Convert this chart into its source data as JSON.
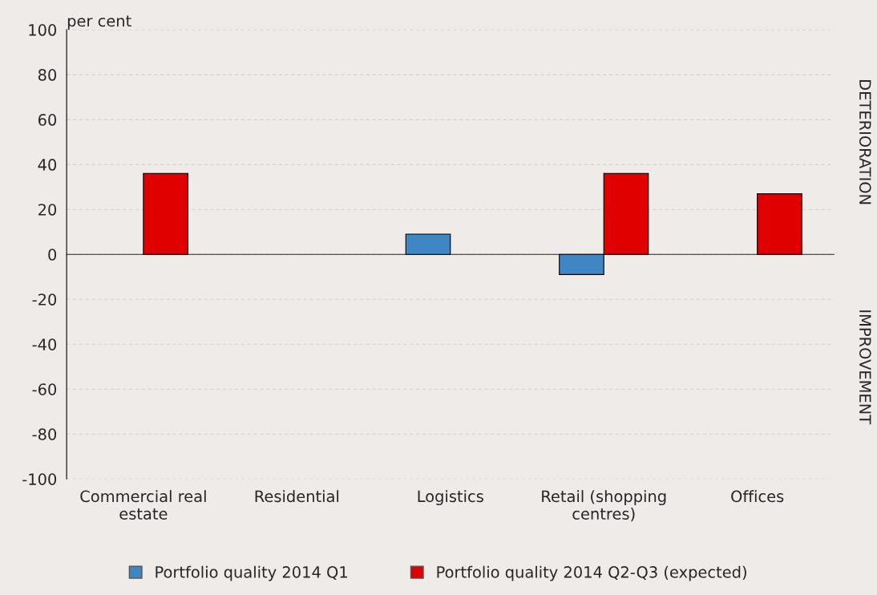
{
  "chart_data": {
    "type": "bar",
    "categories": [
      "Commercial real\nestate",
      "Residential",
      "Logistics",
      "Retail (shopping\ncentres)",
      "Offices"
    ],
    "series": [
      {
        "name": "Portfolio quality 2014 Q1",
        "color": "#3f87c4",
        "values": [
          null,
          null,
          9,
          -9,
          null
        ]
      },
      {
        "name": "Portfolio quality 2014 Q2-Q3 (expected)",
        "color": "#e00000",
        "values": [
          36,
          null,
          null,
          36,
          27
        ]
      }
    ],
    "ylabel": "per cent",
    "ylim": [
      -100,
      100
    ],
    "yticks": [
      -100,
      -80,
      -60,
      -40,
      -20,
      0,
      20,
      40,
      60,
      80,
      100
    ],
    "grid": "y",
    "legend": "bottom",
    "annotations": [
      "DETERIORATION",
      "IMPROVEMENT"
    ]
  }
}
